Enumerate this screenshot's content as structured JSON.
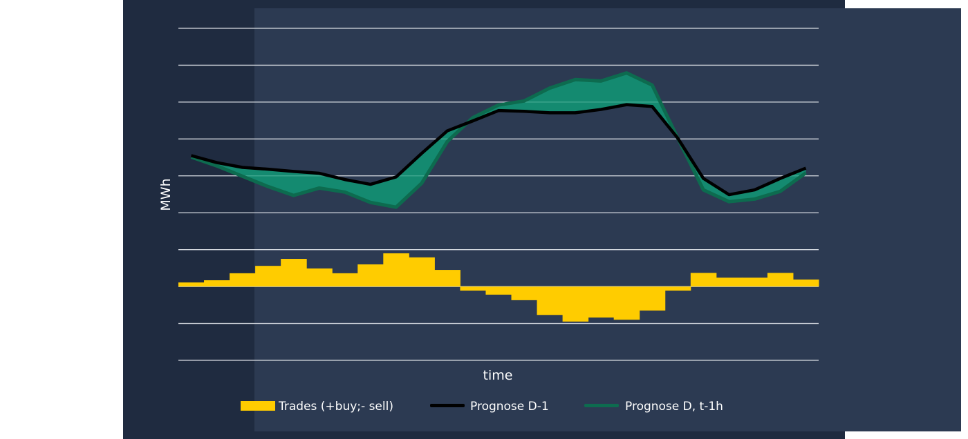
{
  "chart_data": {
    "type": "bar+line",
    "title": "",
    "xlabel": "time",
    "ylabel": "MWh",
    "ylim": [
      -2,
      7
    ],
    "grid": true,
    "legend_position": "bottom",
    "x": [
      1,
      2,
      3,
      4,
      5,
      6,
      7,
      8,
      9,
      10,
      11,
      12,
      13,
      14,
      15,
      16,
      17,
      18,
      19,
      20,
      21,
      22,
      23,
      24,
      25
    ],
    "series": [
      {
        "name": "Trades (+buy;- sell)",
        "kind": "step-bar",
        "color": "#ffcc00",
        "values": [
          0.11,
          0.17,
          0.36,
          0.56,
          0.75,
          0.49,
          0.36,
          0.6,
          0.9,
          0.79,
          0.45,
          -0.11,
          -0.22,
          -0.37,
          -0.77,
          -0.95,
          -0.84,
          -0.9,
          -0.65,
          -0.11,
          0.37,
          0.24,
          0.24,
          0.37,
          0.19
        ]
      },
      {
        "name": "Prognose D-1",
        "kind": "line",
        "color": "#000000",
        "values": [
          3.55,
          3.36,
          3.23,
          3.18,
          3.12,
          3.07,
          2.9,
          2.77,
          2.97,
          3.61,
          4.22,
          4.49,
          4.77,
          4.75,
          4.71,
          4.71,
          4.8,
          4.93,
          4.88,
          4.02,
          2.93,
          2.49,
          2.62,
          2.93,
          3.21
        ]
      },
      {
        "name": "Prognose D, t-1h",
        "kind": "line",
        "color": "#0d6b4f",
        "values": [
          3.51,
          3.27,
          2.99,
          2.71,
          2.47,
          2.67,
          2.56,
          2.28,
          2.15,
          2.8,
          3.93,
          4.58,
          4.92,
          5.03,
          5.38,
          5.61,
          5.57,
          5.79,
          5.46,
          4.02,
          2.62,
          2.3,
          2.37,
          2.58,
          3.08
        ]
      }
    ],
    "difference_fill_color": "#148a70",
    "background_color": "#2c3a52"
  }
}
